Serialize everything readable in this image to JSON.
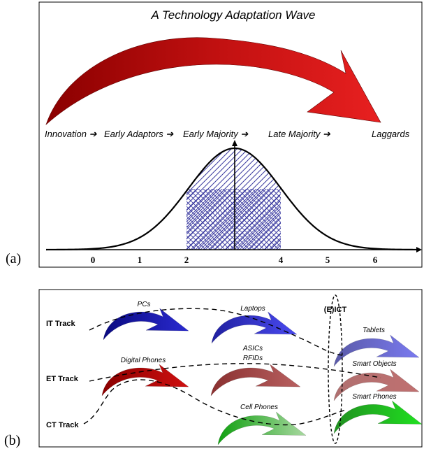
{
  "panel_a": {
    "label": "(a)",
    "title": "A Technology Adaptation Wave",
    "stages": [
      "Innovation ➔",
      "Early Adaptors ➔",
      "Early Majority ➔",
      "Late Majority ➔",
      "Laggards"
    ],
    "axis_ticks": [
      "0",
      "1",
      "2",
      "4",
      "5",
      "6"
    ]
  },
  "panel_b": {
    "label": "(b)",
    "tracks": [
      "IT Track",
      "ET Track",
      "CT Track"
    ],
    "convergence_label": "(E)ICT",
    "devices": {
      "pcs": "PCs",
      "laptops": "Laptops",
      "tablets": "Tablets",
      "digital_phones": "Digital Phones",
      "asics": "ASICs",
      "rfids": "RFIDs",
      "smart_objects": "Smart Objects",
      "cell_phones": "Cell Phones",
      "smart_phones": "Smart Phones"
    }
  },
  "colors": {
    "wave_red": "#c81010",
    "it_blue": "#3a3ad8",
    "et_red": "#b05a5a",
    "ct_green": "#2fb02f",
    "hatch": "#3a3aa0"
  }
}
